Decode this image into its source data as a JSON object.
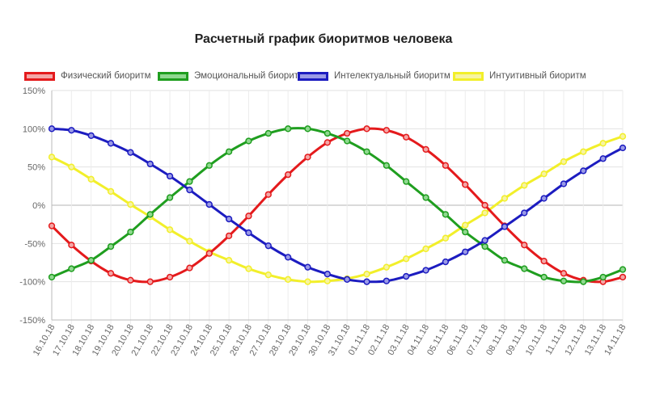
{
  "chart_data": {
    "type": "line",
    "title": "Расчетный график биоритмов человека",
    "xlabel": "",
    "ylabel": "",
    "ylim": [
      -150,
      150
    ],
    "yticks": [
      "150%",
      "100%",
      "50%",
      "0%",
      "-50%",
      "-100%",
      "-150%"
    ],
    "categories": [
      "16.10.18",
      "17.10.18",
      "18.10.18",
      "19.10.18",
      "20.10.18",
      "21.10.18",
      "22.10.18",
      "23.10.18",
      "24.10.18",
      "25.10.18",
      "26.10.18",
      "27.10.18",
      "28.10.18",
      "29.10.18",
      "30.10.18",
      "31.10.18",
      "01.11.18",
      "02.11.18",
      "03.11.18",
      "04.11.18",
      "05.11.18",
      "06.11.18",
      "07.11.18",
      "08.11.18",
      "09.11.18",
      "10.11.18",
      "11.11.18",
      "12.11.18",
      "13.11.18",
      "14.11.18"
    ],
    "grid": true,
    "legend_position": "top",
    "series": [
      {
        "name": "Физический биоритм",
        "color": "#e41a1c",
        "fill": "#f4a6a6",
        "values": [
          -27,
          -52,
          -73,
          -89,
          -98,
          -100,
          -94,
          -82,
          -63,
          -40,
          -14,
          14,
          40,
          63,
          82,
          94,
          100,
          98,
          89,
          73,
          52,
          27,
          0,
          -27,
          -52,
          -73,
          -89,
          -98,
          -100,
          -94
        ]
      },
      {
        "name": "Эмоциональный биоритм",
        "color": "#1f9e1f",
        "fill": "#8fd88f",
        "values": [
          -94,
          -83,
          -72,
          -54,
          -35,
          -12,
          10,
          31,
          52,
          70,
          84,
          94,
          100,
          100,
          94,
          84,
          70,
          52,
          31,
          10,
          -12,
          -35,
          -54,
          -72,
          -83,
          -94,
          -99,
          -100,
          -94,
          -84
        ]
      },
      {
        "name": "Интелектуальный биоритм",
        "color": "#1c1cc0",
        "fill": "#9a9ae6",
        "values": [
          100,
          98,
          91,
          81,
          69,
          54,
          38,
          20,
          1,
          -18,
          -36,
          -53,
          -68,
          -81,
          -90,
          -97,
          -100,
          -99,
          -93,
          -85,
          -74,
          -61,
          -46,
          -28,
          -10,
          9,
          28,
          45,
          61,
          75
        ]
      },
      {
        "name": "Интуитивный биоритм",
        "color": "#f2ef2a",
        "fill": "#f7f4a0",
        "values": [
          63,
          50,
          34,
          18,
          1,
          -15,
          -32,
          -47,
          -61,
          -72,
          -83,
          -91,
          -97,
          -100,
          -99,
          -96,
          -90,
          -81,
          -70,
          -57,
          -43,
          -26,
          -10,
          9,
          26,
          41,
          57,
          70,
          81,
          90
        ]
      }
    ]
  }
}
